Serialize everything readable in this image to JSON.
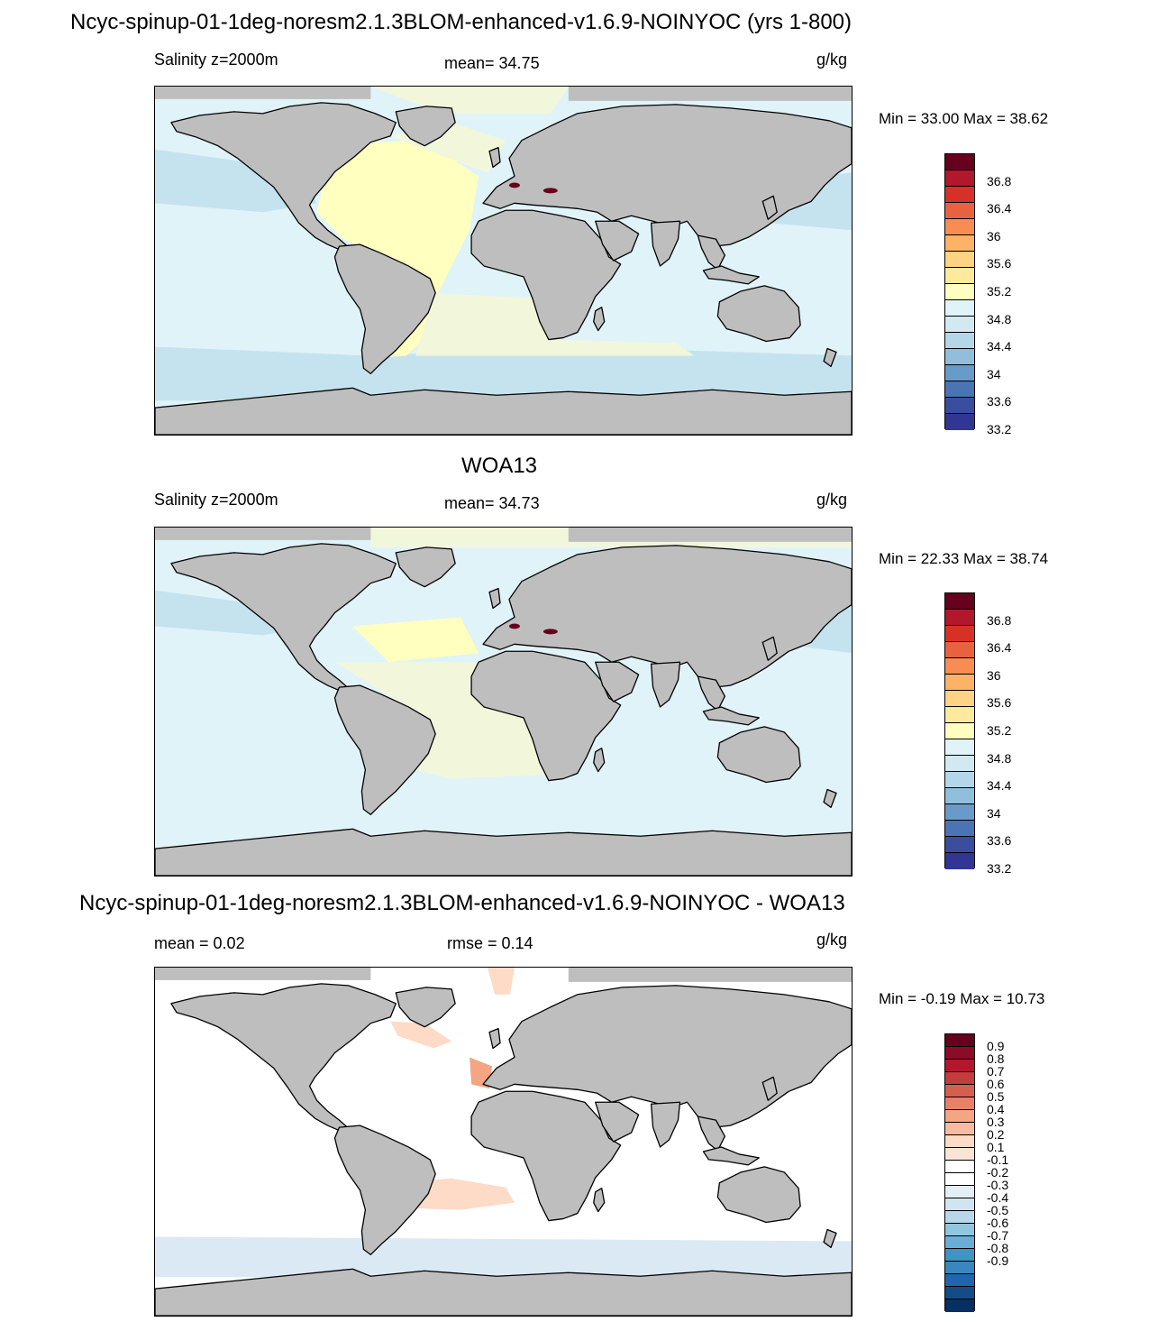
{
  "figure_title": "Ncyc-spinup-01-1deg-noresm2.1.3BLOM-enhanced-v1.6.9-NOINYOC (yrs 1-800)",
  "colors": {
    "land": "#bebebe",
    "coast": "#000000",
    "ocean_low": "#e0f3f8",
    "ocean_mid": "#ffffbf",
    "ocean_blue": "#c5e3ef",
    "diff_zero": "#ffffff",
    "diff_pos": "#fddbc7",
    "diff_neg": "#dbe9f4"
  },
  "panels": [
    {
      "id": "model",
      "title": "",
      "left_label": "Salinity z=2000m",
      "center_label": "mean=  34.75",
      "units": "g/kg",
      "minmax": "Min =  33.00 Max =  38.62",
      "colorbar": {
        "colors": [
          "#313695",
          "#3a4d9e",
          "#4a74b4",
          "#6a9ac8",
          "#91bfdb",
          "#b3d7e8",
          "#d2e9f2",
          "#e0f3f8",
          "#ffffbf",
          "#fee99d",
          "#fed384",
          "#fdb366",
          "#f88d52",
          "#e9623f",
          "#d73027",
          "#b2182b",
          "#67001f"
        ],
        "labels": [
          "36.8",
          "36.4",
          "36",
          "35.6",
          "35.2",
          "34.8",
          "34.4",
          "34",
          "33.6",
          "33.2"
        ]
      }
    },
    {
      "id": "obs",
      "title": "WOA13",
      "left_label": "Salinity z=2000m",
      "center_label": "mean=  34.73",
      "units": "g/kg",
      "minmax": "Min =  22.33 Max =  38.74",
      "colorbar": {
        "colors": [
          "#313695",
          "#3a4d9e",
          "#4a74b4",
          "#6a9ac8",
          "#91bfdb",
          "#b3d7e8",
          "#d2e9f2",
          "#e0f3f8",
          "#ffffbf",
          "#fee99d",
          "#fed384",
          "#fdb366",
          "#f88d52",
          "#e9623f",
          "#d73027",
          "#b2182b",
          "#67001f"
        ],
        "labels": [
          "36.8",
          "36.4",
          "36",
          "35.6",
          "35.2",
          "34.8",
          "34.4",
          "34",
          "33.6",
          "33.2"
        ]
      }
    },
    {
      "id": "diff",
      "title": "Ncyc-spinup-01-1deg-noresm2.1.3BLOM-enhanced-v1.6.9-NOINYOC - WOA13",
      "left_label": "mean =   0.02",
      "center_label": "rmse =   0.14",
      "units": "g/kg",
      "minmax": "Min =  -0.19 Max =  10.73",
      "colorbar": {
        "colors": [
          "#053061",
          "#134c87",
          "#2166ac",
          "#3a87bd",
          "#4393c3",
          "#6aaed6",
          "#92c5de",
          "#b8d8ea",
          "#d1e5f0",
          "#e4eef6",
          "#ffffff",
          "#ffffff",
          "#fbe3d6",
          "#fddbc7",
          "#f7bba1",
          "#f4a582",
          "#e58267",
          "#d6604d",
          "#c43c3c",
          "#b2182b",
          "#8e0b26",
          "#67001f"
        ],
        "labels": [
          "0.9",
          "0.8",
          "0.7",
          "0.6",
          "0.5",
          "0.4",
          "0.3",
          "0.2",
          "0.1",
          "-0.1",
          "-0.2",
          "-0.3",
          "-0.4",
          "-0.5",
          "-0.6",
          "-0.7",
          "-0.8",
          "-0.9"
        ]
      }
    }
  ]
}
